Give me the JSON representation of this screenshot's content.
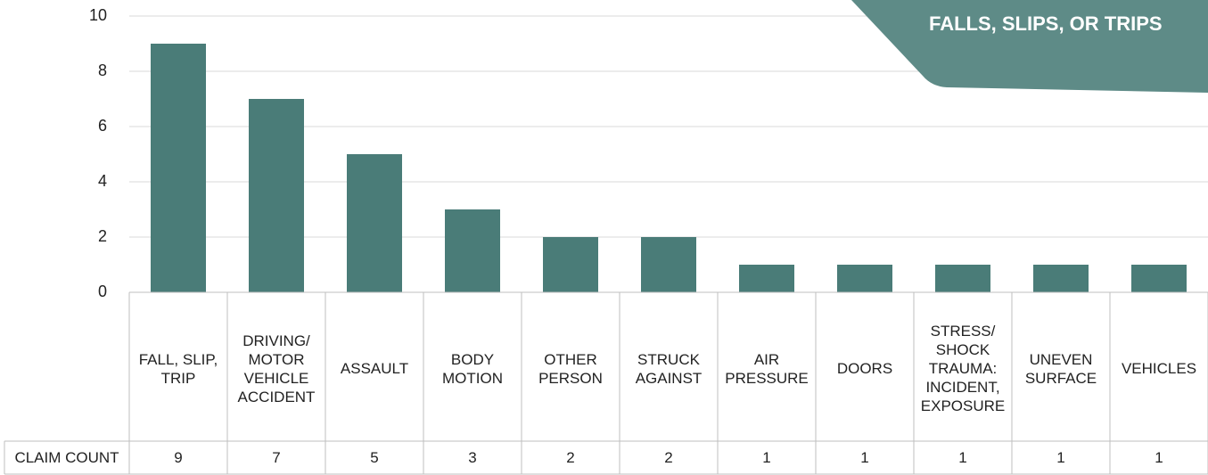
{
  "chart_data": {
    "type": "bar",
    "annotation": "FALLS, SLIPS, OR TRIPS",
    "categories": [
      "FALL, SLIP, TRIP",
      "DRIVING/ MOTOR VEHICLE ACCIDENT",
      "ASSAULT",
      "BODY MOTION",
      "OTHER PERSON",
      "STRUCK AGAINST",
      "AIR PRESSURE",
      "DOORS",
      "STRESS/ SHOCK TRAUMA: INCIDENT, EXPOSURE",
      "UNEVEN SURFACE",
      "VEHICLES"
    ],
    "series": [
      {
        "name": "CLAIM COUNT",
        "color": "#4a7c78",
        "values": [
          9,
          7,
          5,
          3,
          2,
          2,
          1,
          1,
          1,
          1,
          1
        ]
      }
    ],
    "ylim": [
      0,
      10
    ],
    "yticks": [
      0,
      2,
      4,
      6,
      8,
      10
    ],
    "grid": true
  }
}
